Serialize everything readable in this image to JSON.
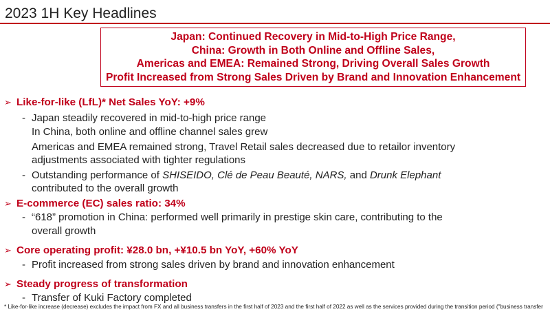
{
  "header": {
    "title": "2023 1H Key Headlines"
  },
  "headlines": [
    "Japan: Continued Recovery in Mid-to-High Price Range,",
    "China: Growth in Both Online and Offline Sales,",
    "Americas and EMEA: Remained Strong, Driving Overall Sales Growth",
    "Profit Increased from Strong Sales Driven by Brand and Innovation Enhancement"
  ],
  "sections": [
    {
      "arrow": "➢",
      "heading": "Like-for-like (LfL)* Net Sales YoY: +9%",
      "lines": [
        "Japan steadily recovered in mid-to-high price range",
        "In China, both online and offline channel sales grew",
        "Americas and EMEA remained strong, Travel Retail sales decreased due to retailor inventory",
        "adjustments associated with tighter regulations",
        "Outstanding performance of",
        "SHISEIDO, Clé de Peau Beauté, NARS,",
        "and",
        "Drunk Elephant",
        "contributed to the overall growth"
      ]
    },
    {
      "arrow": "➢",
      "heading": "E-commerce (EC) sales ratio: 34%",
      "lines": [
        "“618” promotion in China: performed well primarily in prestige skin care, contributing to the",
        "overall growth"
      ]
    },
    {
      "arrow": "➢",
      "heading": "Core operating profit: ¥28.0 bn, +¥10.5 bn YoY, +60% YoY",
      "lines": [
        "Profit increased from strong sales driven by brand and innovation enhancement"
      ]
    },
    {
      "arrow": "➢",
      "heading": "Steady progress of transformation",
      "lines": [
        "Transfer of Kuki Factory completed"
      ]
    }
  ],
  "dash": "-",
  "footnote": "* Like-for-like increase (decrease) excludes the impact from FX and all business transfers in the first half of 2023 and the first half of 2022  as well as the services provided during the transition period (\"business transfer",
  "colors": {
    "accent": "#c0001a",
    "text": "#222222"
  }
}
